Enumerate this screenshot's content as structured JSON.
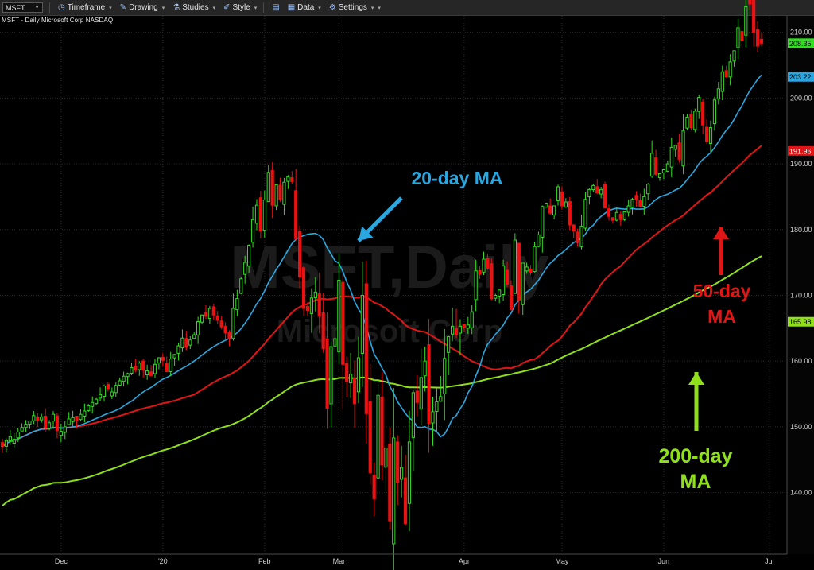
{
  "toolbar": {
    "symbol": "MSFT",
    "items": [
      "Timeframe",
      "Drawing",
      "Studies",
      "Style",
      "Data",
      "Settings"
    ]
  },
  "subtitle": "MSFT - Daily  Microsoft Corp  NASDAQ",
  "watermark": {
    "line1": "MSFT,Daily",
    "line2": "Microsoft Corp"
  },
  "colors": {
    "background": "#000000",
    "up": "#33dd22",
    "down": "#ee1111",
    "ma20": "#2aa7e0",
    "ma50": "#e01515",
    "ma200": "#8fe01a",
    "last_price_tag": "#33dd22"
  },
  "annotations": {
    "ma20": "20-day MA",
    "ma50_line1": "50-day",
    "ma50_line2": "MA",
    "ma200_line1": "200-day",
    "ma200_line2": "MA"
  },
  "chart_data": {
    "type": "candlestick",
    "title": "MSFT - Daily  Microsoft Corp  NASDAQ",
    "ylim": [
      131,
      212.5
    ],
    "y_ticks": [
      140,
      150,
      160,
      170,
      180,
      190,
      200,
      210
    ],
    "y_tick_labels": [
      "140.00",
      "150.00",
      "160.00",
      "170.00",
      "180.00",
      "190.00",
      "200.00",
      "210.00"
    ],
    "x_tick_labels": [
      {
        "label": "Dec",
        "index": 15
      },
      {
        "label": "'20",
        "index": 41
      },
      {
        "label": "Feb",
        "index": 67
      },
      {
        "label": "Mar",
        "index": 86
      },
      {
        "label": "Apr",
        "index": 118
      },
      {
        "label": "May",
        "index": 143
      },
      {
        "label": "Jun",
        "index": 169
      },
      {
        "label": "Jul",
        "index": 196
      }
    ],
    "price_tags": [
      {
        "value": 208.35,
        "label": "208.35",
        "series": "last"
      },
      {
        "value": 203.22,
        "label": "203.22",
        "series": "ma20"
      },
      {
        "value": 191.96,
        "label": "191.96",
        "series": "ma50"
      },
      {
        "value": 165.98,
        "label": "165.98",
        "series": "ma200"
      }
    ],
    "closes": [
      147.0,
      147.9,
      148.5,
      148.1,
      149.2,
      149.9,
      150.4,
      150.9,
      151.7,
      151.0,
      151.5,
      149.8,
      150.6,
      151.9,
      149.4,
      149.3,
      150.0,
      151.2,
      151.4,
      150.9,
      151.9,
      152.4,
      153.2,
      153.7,
      154.2,
      154.9,
      156.2,
      155.8,
      155.3,
      156.3,
      157.0,
      157.7,
      158.1,
      159.0,
      158.6,
      159.7,
      158.6,
      158.5,
      157.8,
      159.5,
      160.5,
      160.1,
      158.4,
      160.3,
      161.0,
      162.3,
      163.5,
      162.1,
      163.2,
      164.0,
      166.0,
      167.0,
      166.8,
      168.0,
      167.0,
      166.2,
      165.2,
      164.3,
      163.4,
      168.0,
      169.5,
      172.5,
      175.0,
      177.6,
      181.5,
      183.7,
      179.8,
      184.5,
      188.7,
      183.7,
      186.8,
      184.6,
      187.2,
      188.0,
      187.3,
      178.6,
      172.8,
      168.0,
      167.7,
      169.6,
      170.5,
      166.8,
      161.9,
      152.8,
      162.2,
      163.4,
      172.3,
      159.5,
      156.9,
      158.0,
      153.5,
      160.5,
      170.0,
      152.0,
      143.0,
      139.0,
      154.8,
      144.2,
      146.8,
      135.7,
      148.3,
      141.5,
      143.8,
      135.3,
      147.7,
      155.2,
      153.7,
      157.5,
      160.0,
      150.5,
      152.3,
      153.8,
      154.6,
      160.4,
      163.7,
      165.3,
      164.0,
      165.3,
      165.1,
      165.5,
      167.5,
      173.7,
      173.2,
      175.5,
      174.1,
      169.5,
      170.0,
      170.8,
      174.5,
      171.7,
      167.8,
      178.4,
      169.3,
      174.9,
      174.3,
      173.5,
      177.4,
      179.2,
      183.5,
      184.0,
      182.5,
      183.6,
      186.5,
      183.6,
      184.2,
      180.7,
      179.8,
      178.0,
      180.5,
      184.6,
      186.1,
      186.7,
      185.6,
      186.1,
      183.3,
      182.0,
      181.4,
      182.6,
      181.5,
      182.7,
      183.6,
      184.6,
      184.6,
      183.5,
      185.0,
      186.9,
      191.6,
      188.4,
      188.5,
      189.1,
      190.0,
      192.5,
      192.8,
      190.7,
      195.0,
      197.1,
      195.5,
      198.0,
      200.1,
      195.9,
      193.4,
      195.5,
      199.7,
      201.4,
      204.0,
      203.2,
      205.5,
      207.2,
      210.7,
      208.7,
      213.9,
      214.3,
      210.0,
      207.9,
      208.35
    ]
  }
}
